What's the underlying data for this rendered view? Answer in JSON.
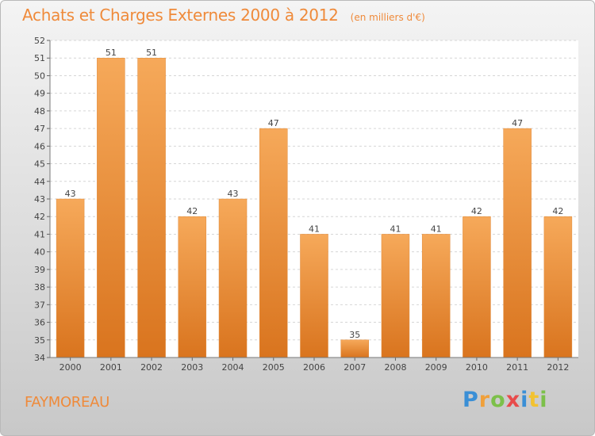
{
  "header": {
    "title": "Achats et Charges Externes 2000 à 2012",
    "subtitle": "(en milliers d'€)"
  },
  "commune": "FAYMOREAU",
  "logo": {
    "text": "Proxiti"
  },
  "colors": {
    "bar": "#f0943e",
    "bar_light": "#f6a95a",
    "bar_dark": "#d9741e",
    "accent": "#ef8a3a"
  },
  "chart_data": {
    "type": "bar",
    "title": "Achats et Charges Externes 2000 à 2012",
    "subtitle": "(en milliers d'€)",
    "xlabel": "",
    "ylabel": "",
    "categories": [
      "2000",
      "2001",
      "2002",
      "2003",
      "2004",
      "2005",
      "2006",
      "2007",
      "2008",
      "2009",
      "2010",
      "2011",
      "2012"
    ],
    "values": [
      43,
      51,
      51,
      42,
      43,
      47,
      41,
      35,
      41,
      41,
      42,
      47,
      42
    ],
    "ylim": [
      34,
      52
    ],
    "yticks": [
      34,
      35,
      36,
      37,
      38,
      39,
      40,
      41,
      42,
      43,
      44,
      45,
      46,
      47,
      48,
      49,
      50,
      51,
      52
    ],
    "grid": true,
    "data_labels": true
  }
}
